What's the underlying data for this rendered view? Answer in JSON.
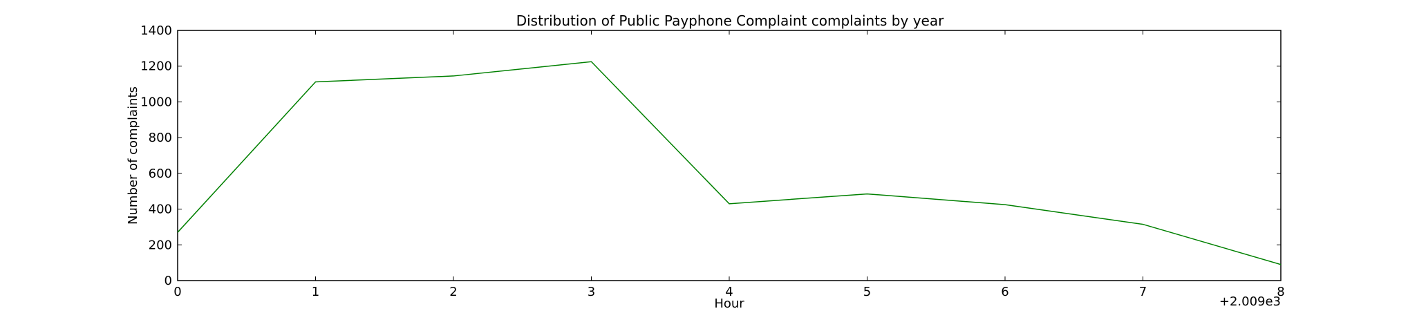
{
  "chart_data": {
    "type": "line",
    "title": "Distribution of  Public Payphone Complaint complaints by year",
    "xlabel": "Hour",
    "ylabel": "Number of complaints",
    "x_offset_label": "+2.009e3",
    "x": [
      0,
      1,
      2,
      3,
      4,
      5,
      6,
      7,
      8
    ],
    "xlim": [
      0,
      8
    ],
    "ylim": [
      0,
      1400
    ],
    "x_ticks": [
      0,
      1,
      2,
      3,
      4,
      5,
      6,
      7,
      8
    ],
    "y_ticks": [
      0,
      200,
      400,
      600,
      800,
      1000,
      1200,
      1400
    ],
    "grid": false,
    "series": [
      {
        "values": [
          270,
          1112,
          1145,
          1225,
          430,
          485,
          425,
          315,
          90
        ],
        "color": "#008000"
      }
    ]
  }
}
